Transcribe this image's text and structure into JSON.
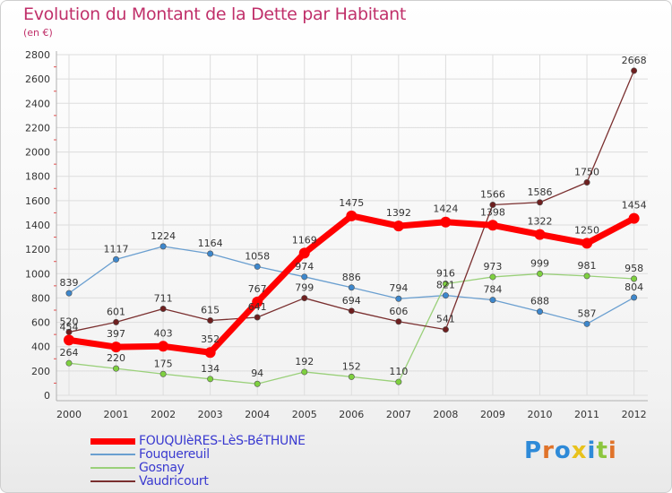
{
  "chart_data": {
    "type": "line",
    "title": "Evolution du Montant de la Dette par Habitant",
    "subtitle": "(en €)",
    "xlabel": "",
    "ylabel": "",
    "ylim": [
      0,
      2800
    ],
    "yticks": [
      0,
      200,
      400,
      600,
      800,
      1000,
      1200,
      1400,
      1600,
      1800,
      2000,
      2200,
      2400,
      2600,
      2800
    ],
    "categories": [
      "2000",
      "2001",
      "2002",
      "2003",
      "2004",
      "2005",
      "2006",
      "2007",
      "2008",
      "2009",
      "2010",
      "2011",
      "2012"
    ],
    "grid": true,
    "legend_position": "bottom-left",
    "series": [
      {
        "name": "FOUQUIèRES-LèS-BéTHUNE",
        "color": "#ff0000",
        "marker_color": "#ff0000",
        "thick": true,
        "values": [
          454,
          397,
          403,
          352,
          767,
          1169,
          1475,
          1392,
          1424,
          1398,
          1322,
          1250,
          1454
        ]
      },
      {
        "name": "Fouquereuil",
        "color": "#6a9fd0",
        "marker_color": "#3d87cc",
        "thick": false,
        "values": [
          839,
          1117,
          1224,
          1164,
          1058,
          974,
          886,
          794,
          821,
          784,
          688,
          587,
          804
        ]
      },
      {
        "name": "Gosnay",
        "color": "#9ad07a",
        "marker_color": "#7ed03f",
        "thick": false,
        "values": [
          264,
          220,
          175,
          134,
          94,
          192,
          152,
          110,
          916,
          973,
          999,
          981,
          958
        ]
      },
      {
        "name": "Vaudricourt",
        "color": "#7a2f2f",
        "marker_color": "#6e1f1f",
        "thick": false,
        "values": [
          520,
          601,
          711,
          615,
          641,
          799,
          694,
          606,
          541,
          1566,
          1586,
          1750,
          2668
        ]
      }
    ]
  },
  "logo": {
    "text": "Proxiti",
    "colors": [
      "#2e8ad8",
      "#e0732a",
      "#2e8ad8",
      "#e8c21c",
      "#2e8ad8",
      "#8cc63f",
      "#e0732a"
    ]
  }
}
